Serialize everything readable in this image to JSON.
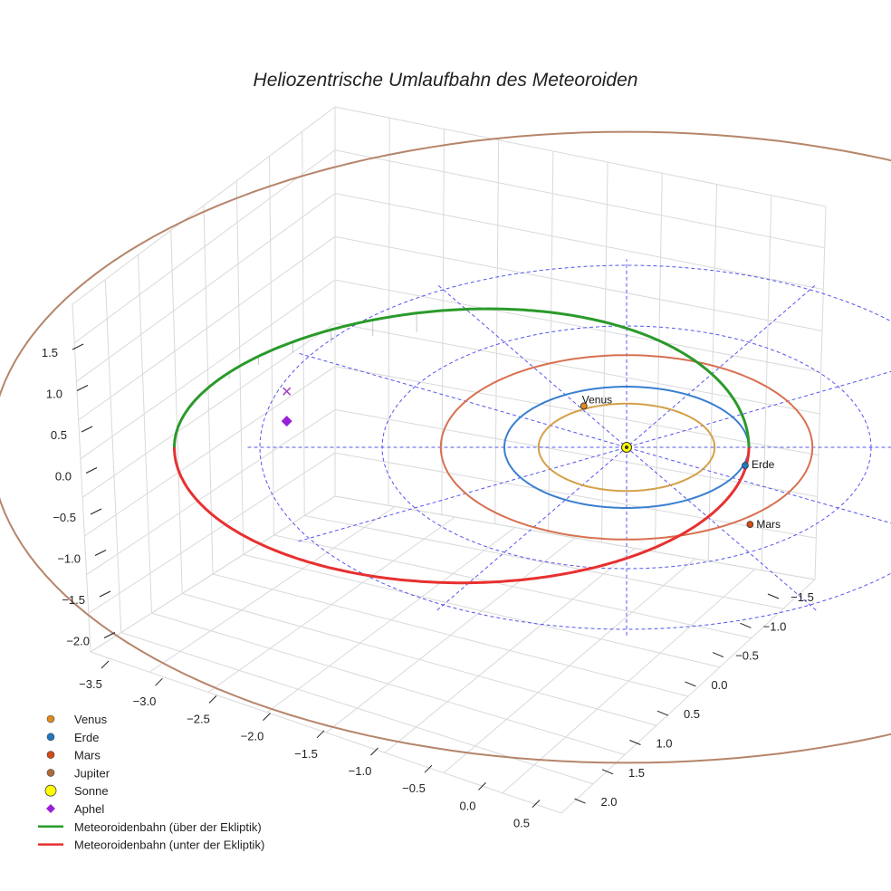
{
  "chart_data": {
    "type": "line3d",
    "title": "Heliozentrische Umlaufbahn des Meteoroiden",
    "z_ticks": [
      "1.5",
      "1.0",
      "0.5",
      "0.0",
      "−0.5",
      "−1.0",
      "−1.5",
      "−2.0"
    ],
    "x_ticks": [
      "−3.5",
      "−3.0",
      "−2.5",
      "−2.0",
      "−1.5",
      "−1.0",
      "−0.5",
      "0.0",
      "0.5"
    ],
    "y_ticks": [
      "−1.5",
      "−1.0",
      "−0.5",
      "0.0",
      "0.5",
      "1.0",
      "1.5",
      "2.0"
    ],
    "z_range": [
      -2.0,
      1.5
    ],
    "x_range": [
      -3.5,
      0.5
    ],
    "y_range": [
      -1.5,
      2.0
    ],
    "planet_orbits": [
      {
        "name": "Venus",
        "radius_au": 0.72,
        "color": "#d4a04a"
      },
      {
        "name": "Erde",
        "radius_au": 1.0,
        "color": "#3a7fd0"
      },
      {
        "name": "Mars",
        "radius_au": 1.52,
        "color": "#d87050"
      },
      {
        "name": "Jupiter",
        "radius_au": 5.2,
        "color": "#b5856a"
      }
    ],
    "planet_labels": [
      "Venus",
      "Erde",
      "Mars"
    ],
    "grid_circles_au": [
      1,
      2,
      3
    ],
    "meteoroid": {
      "perihelion_au": 1.0,
      "aphelion_au": 3.7,
      "aphelion_height_au": 0.4,
      "color_above": "#2a9a2a",
      "color_below": "#e83030"
    },
    "legend": [
      {
        "label": "Venus",
        "marker": "circle",
        "color": "#e08a20"
      },
      {
        "label": "Erde",
        "marker": "circle",
        "color": "#1f78c0"
      },
      {
        "label": "Mars",
        "marker": "circle",
        "color": "#d24a16"
      },
      {
        "label": "Jupiter",
        "marker": "circle",
        "color": "#b06a3a"
      },
      {
        "label": "Sonne",
        "marker": "circle-large",
        "color": "#ffff00"
      },
      {
        "label": "Aphel",
        "marker": "diamond",
        "color": "#9a20d8"
      },
      {
        "label": "Meteoroidenbahn (über der Ekliptik)",
        "marker": "line",
        "color": "#2a9a2a"
      },
      {
        "label": "Meteoroidenbahn (unter der Ekliptik)",
        "marker": "line",
        "color": "#e83030"
      }
    ]
  }
}
